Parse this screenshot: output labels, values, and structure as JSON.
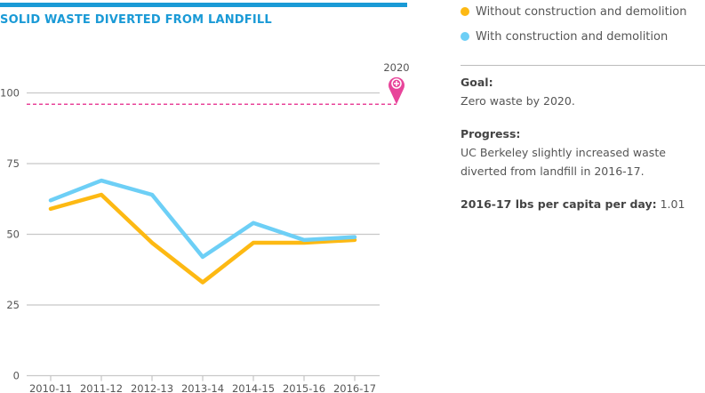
{
  "title": "SOLID WASTE DIVERTED FROM LANDFILL",
  "legend": [
    {
      "label": "Without construction and demolition",
      "color": "#fdb913"
    },
    {
      "label": "With construction and demolition",
      "color": "#6dcff6"
    }
  ],
  "side": {
    "goal_label": "Goal:",
    "goal_text": "Zero waste by 2020.",
    "progress_label": "Progress:",
    "progress_text": "UC Berkeley slightly increased waste diverted from landfill in 2016-17.",
    "metric_label": "2016-17 lbs per capita per day:",
    "metric_value": "1.01"
  },
  "chart_data": {
    "type": "line",
    "categories": [
      "2010-11",
      "2011-12",
      "2012-13",
      "2013-14",
      "2014-15",
      "2015-16",
      "2016-17"
    ],
    "series": [
      {
        "name": "Without construction and demolition",
        "color": "#fdb913",
        "values": [
          59,
          64,
          47,
          33,
          47,
          47,
          48
        ]
      },
      {
        "name": "With construction and demolition",
        "color": "#6dcff6",
        "values": [
          62,
          69,
          64,
          42,
          54,
          48,
          49
        ]
      }
    ],
    "yticks": [
      0,
      25,
      50,
      75,
      100
    ],
    "ylim": [
      0,
      100
    ],
    "grid": true,
    "goal": {
      "label": "2020",
      "value": 96,
      "color": "#e8449a",
      "icon": "map-pin-plus-icon"
    }
  }
}
